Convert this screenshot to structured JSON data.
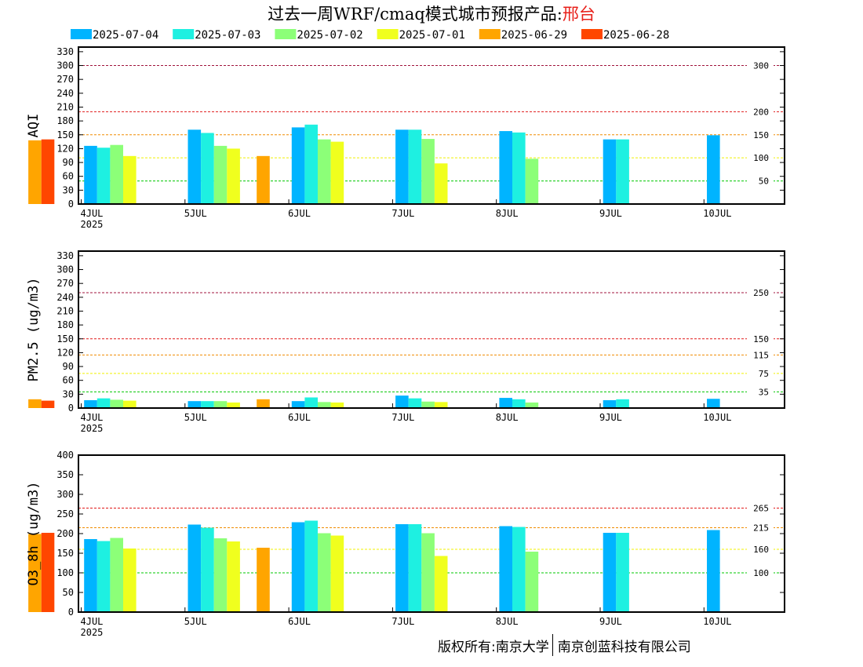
{
  "title": {
    "main": "过去一周WRF/cmaq模式城市预报产品:",
    "city": "邢台"
  },
  "footer": {
    "left": "版权所有:南京大学",
    "right": "南京创蓝科技有限公司"
  },
  "chart_data": [
    {
      "type": "bar",
      "ylabel": "AQI",
      "ylim": [
        0,
        340
      ],
      "yticks": [
        0,
        30,
        60,
        90,
        120,
        150,
        180,
        210,
        240,
        270,
        300,
        330
      ],
      "xticks": [
        "4JUL",
        "5JUL",
        "6JUL",
        "7JUL",
        "8JUL",
        "9JUL",
        "10JUL"
      ],
      "xyear": "2025",
      "thresholds": [
        {
          "value": 300,
          "label": "300",
          "color": "#a0143c"
        },
        {
          "value": 200,
          "label": "200",
          "color": "#e01818"
        },
        {
          "value": 150,
          "label": "150",
          "color": "#f08c00"
        },
        {
          "value": 100,
          "label": "100",
          "color": "#f0f000"
        },
        {
          "value": 50,
          "label": "50",
          "color": "#00c800"
        }
      ],
      "series": [
        {
          "name": "2025-07-04",
          "color": "#00b4ff",
          "values": [
            [
              0,
              126
            ],
            [
              1,
              161
            ],
            [
              2,
              166
            ],
            [
              3,
              161
            ],
            [
              4,
              158
            ],
            [
              5,
              140
            ],
            [
              6,
              149
            ]
          ]
        },
        {
          "name": "2025-07-03",
          "color": "#1ef0e1",
          "values": [
            [
              0,
              122
            ],
            [
              1,
              154
            ],
            [
              2,
              172
            ],
            [
              3,
              161
            ],
            [
              4,
              155
            ],
            [
              5,
              140
            ]
          ]
        },
        {
          "name": "2025-07-02",
          "color": "#8cff78",
          "values": [
            [
              0,
              128
            ],
            [
              1,
              126
            ],
            [
              2,
              140
            ],
            [
              3,
              141
            ],
            [
              4,
              98
            ]
          ]
        },
        {
          "name": "2025-07-01",
          "color": "#f0ff1e",
          "values": [
            [
              0,
              104
            ],
            [
              1,
              120
            ],
            [
              2,
              135
            ],
            [
              3,
              88
            ]
          ]
        },
        {
          "name": "2025-06-29",
          "color": "#ffa500",
          "values": [
            [
              -1,
              138
            ],
            [
              0,
              104
            ]
          ]
        },
        {
          "name": "2025-06-28",
          "color": "#ff4600",
          "values": [
            [
              -1,
              140
            ]
          ]
        }
      ]
    },
    {
      "type": "bar",
      "ylabel": "PM2.5 (ug/m3)",
      "ylim": [
        0,
        340
      ],
      "yticks": [
        0,
        30,
        60,
        90,
        120,
        150,
        180,
        210,
        240,
        270,
        300,
        330
      ],
      "xticks": [
        "4JUL",
        "5JUL",
        "6JUL",
        "7JUL",
        "8JUL",
        "9JUL",
        "10JUL"
      ],
      "xyear": "2025",
      "thresholds": [
        {
          "value": 250,
          "label": "250",
          "color": "#a0143c"
        },
        {
          "value": 150,
          "label": "150",
          "color": "#e01818"
        },
        {
          "value": 115,
          "label": "115",
          "color": "#f08c00"
        },
        {
          "value": 75,
          "label": "75",
          "color": "#f0f000"
        },
        {
          "value": 35,
          "label": "35",
          "color": "#00c800"
        }
      ],
      "series": [
        {
          "name": "2025-07-04",
          "color": "#00b4ff",
          "values": [
            [
              0,
              17
            ],
            [
              1,
              15
            ],
            [
              2,
              15
            ],
            [
              3,
              27
            ],
            [
              4,
              22
            ],
            [
              5,
              17
            ],
            [
              6,
              20
            ]
          ]
        },
        {
          "name": "2025-07-03",
          "color": "#1ef0e1",
          "values": [
            [
              0,
              21
            ],
            [
              1,
              15
            ],
            [
              2,
              23
            ],
            [
              3,
              21
            ],
            [
              4,
              19
            ],
            [
              5,
              19
            ]
          ]
        },
        {
          "name": "2025-07-02",
          "color": "#8cff78",
          "values": [
            [
              0,
              18
            ],
            [
              1,
              15
            ],
            [
              2,
              13
            ],
            [
              3,
              14
            ],
            [
              4,
              12
            ]
          ]
        },
        {
          "name": "2025-07-01",
          "color": "#f0ff1e",
          "values": [
            [
              0,
              16
            ],
            [
              1,
              12
            ],
            [
              2,
              12
            ],
            [
              3,
              13
            ]
          ]
        },
        {
          "name": "2025-06-29",
          "color": "#ffa500",
          "values": [
            [
              -1,
              19
            ],
            [
              0,
              19
            ]
          ]
        },
        {
          "name": "2025-06-28",
          "color": "#ff4600",
          "values": [
            [
              -1,
              16
            ]
          ]
        }
      ]
    },
    {
      "type": "bar",
      "ylabel": "O3_8h (ug/m3)",
      "ylim": [
        0,
        400
      ],
      "yticks": [
        0,
        50,
        100,
        150,
        200,
        250,
        300,
        350,
        400
      ],
      "xticks": [
        "4JUL",
        "5JUL",
        "6JUL",
        "7JUL",
        "8JUL",
        "9JUL",
        "10JUL"
      ],
      "xyear": "2025",
      "thresholds": [
        {
          "value": 265,
          "label": "265",
          "color": "#e01818"
        },
        {
          "value": 215,
          "label": "215",
          "color": "#f08c00"
        },
        {
          "value": 160,
          "label": "160",
          "color": "#f0f000"
        },
        {
          "value": 100,
          "label": "100",
          "color": "#00c800"
        }
      ],
      "series": [
        {
          "name": "2025-07-04",
          "color": "#00b4ff",
          "values": [
            [
              0,
              186
            ],
            [
              1,
              223
            ],
            [
              2,
              229
            ],
            [
              3,
              224
            ],
            [
              4,
              219
            ],
            [
              5,
              202
            ],
            [
              6,
              209
            ]
          ]
        },
        {
          "name": "2025-07-03",
          "color": "#1ef0e1",
          "values": [
            [
              0,
              181
            ],
            [
              1,
              215
            ],
            [
              2,
              233
            ],
            [
              3,
              224
            ],
            [
              4,
              217
            ],
            [
              5,
              202
            ]
          ]
        },
        {
          "name": "2025-07-02",
          "color": "#8cff78",
          "values": [
            [
              0,
              189
            ],
            [
              1,
              188
            ],
            [
              2,
              201
            ],
            [
              3,
              201
            ],
            [
              4,
              154
            ]
          ]
        },
        {
          "name": "2025-07-01",
          "color": "#f0ff1e",
          "values": [
            [
              0,
              162
            ],
            [
              1,
              180
            ],
            [
              2,
              195
            ],
            [
              3,
              143
            ]
          ]
        },
        {
          "name": "2025-06-29",
          "color": "#ffa500",
          "values": [
            [
              -1,
              199
            ],
            [
              0,
              164
            ]
          ]
        },
        {
          "name": "2025-06-28",
          "color": "#ff4600",
          "values": [
            [
              -1,
              202
            ]
          ]
        }
      ]
    }
  ]
}
